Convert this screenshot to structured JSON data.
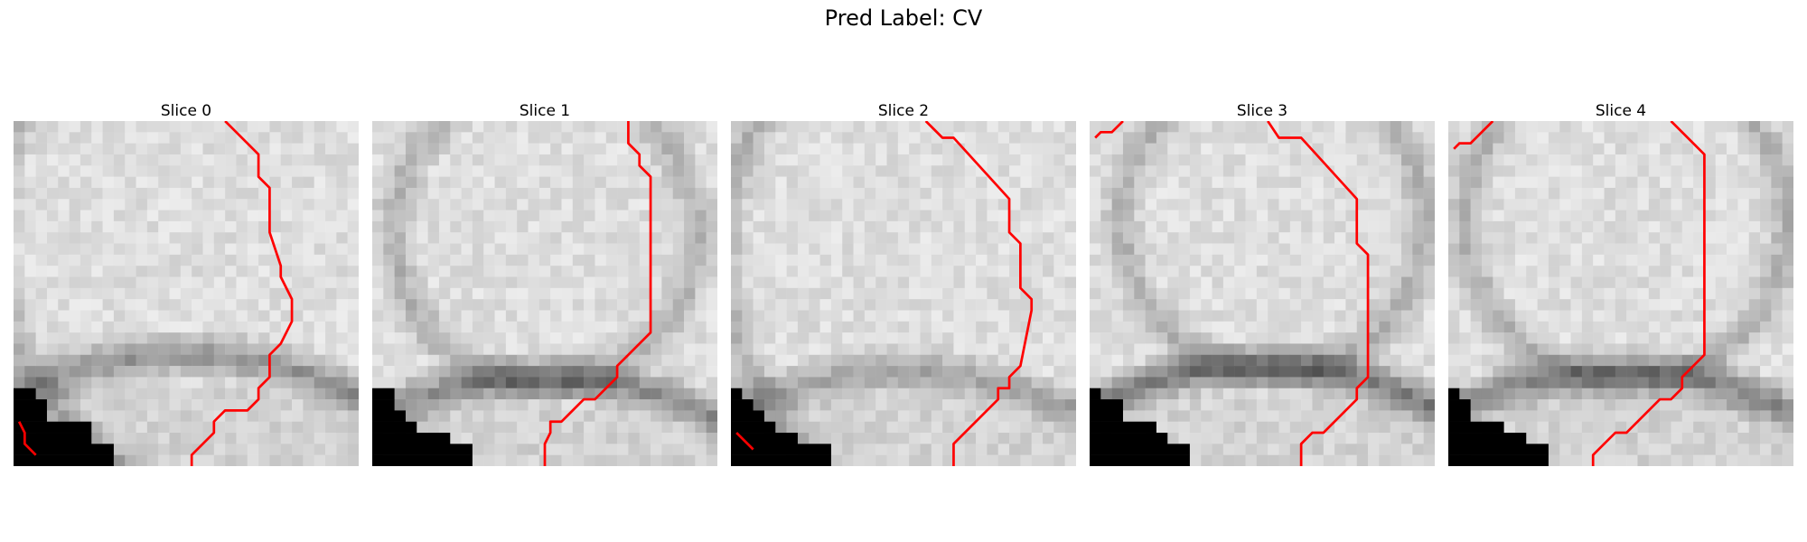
{
  "figure": {
    "title": "Pred Label: CV"
  },
  "slices": [
    {
      "title": "Slice 0",
      "contour_color": "#ff0000"
    },
    {
      "title": "Slice 1",
      "contour_color": "#ff0000"
    },
    {
      "title": "Slice 2",
      "contour_color": "#ff0000"
    },
    {
      "title": "Slice 3",
      "contour_color": "#ff0000"
    },
    {
      "title": "Slice 4",
      "contour_color": "#ff0000"
    }
  ]
}
